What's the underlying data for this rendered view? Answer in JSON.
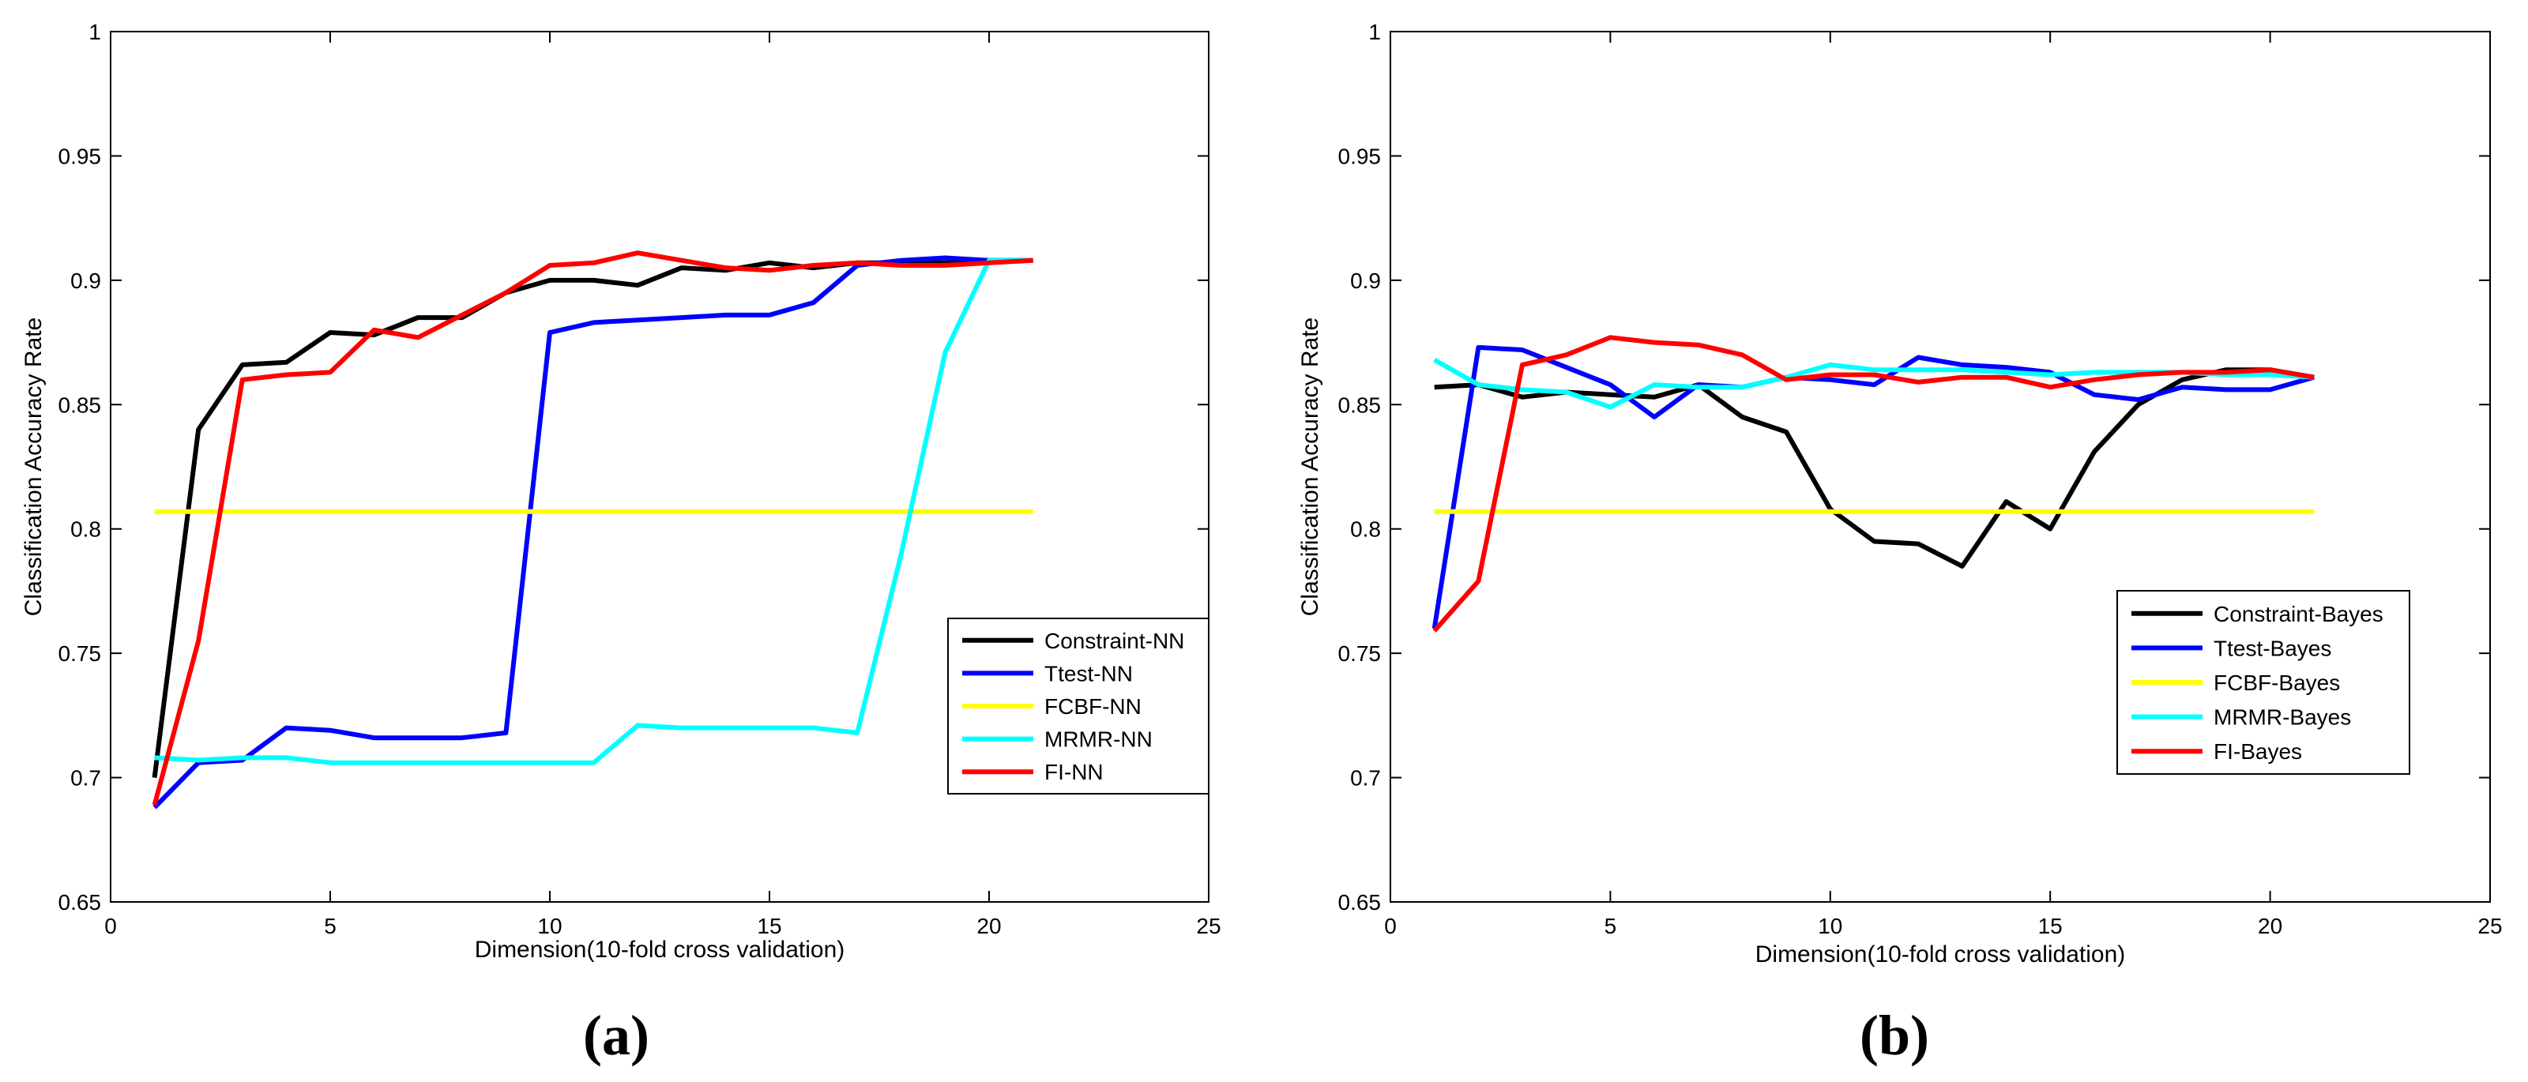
{
  "chart_data": [
    {
      "type": "line",
      "panel_label": "(a)",
      "xlabel": "Dimension(10-fold cross validation)",
      "ylabel": "Classification Accuracy Rate",
      "xlim": [
        0,
        25
      ],
      "ylim": [
        0.65,
        1
      ],
      "xticks": [
        "0",
        "5",
        "10",
        "15",
        "20",
        "25"
      ],
      "yticks": [
        "0.65",
        "0.7",
        "0.75",
        "0.8",
        "0.85",
        "0.9",
        "0.95",
        "1"
      ],
      "legend_position": "bottom-right",
      "x": [
        1,
        2,
        3,
        4,
        5,
        6,
        7,
        8,
        9,
        10,
        11,
        12,
        13,
        14,
        15,
        16,
        17,
        18,
        19,
        20,
        21
      ],
      "series": [
        {
          "name": "Constraint-NN",
          "color": "#000000",
          "values": [
            0.7,
            0.84,
            0.866,
            0.867,
            0.879,
            0.878,
            0.885,
            0.885,
            0.895,
            0.9,
            0.9,
            0.898,
            0.905,
            0.904,
            0.907,
            0.905,
            0.907,
            0.907,
            0.907,
            0.908,
            0.908
          ]
        },
        {
          "name": "Ttest-NN",
          "color": "#0000ff",
          "values": [
            0.688,
            0.706,
            0.707,
            0.72,
            0.719,
            0.716,
            0.716,
            0.716,
            0.718,
            0.879,
            0.883,
            0.884,
            0.885,
            0.886,
            0.886,
            0.891,
            0.906,
            0.908,
            0.909,
            0.908,
            0.908
          ]
        },
        {
          "name": "FCBF-NN",
          "color": "#ffff00",
          "values": [
            0.807,
            0.807,
            0.807,
            0.807,
            0.807,
            0.807,
            0.807,
            0.807,
            0.807,
            0.807,
            0.807,
            0.807,
            0.807,
            0.807,
            0.807,
            0.807,
            0.807,
            0.807,
            0.807,
            0.807,
            0.807
          ]
        },
        {
          "name": "MRMR-NN",
          "color": "#00ffff",
          "values": [
            0.708,
            0.707,
            0.708,
            0.708,
            0.706,
            0.706,
            0.706,
            0.706,
            0.706,
            0.706,
            0.706,
            0.721,
            0.72,
            0.72,
            0.72,
            0.72,
            0.718,
            0.79,
            0.871,
            0.908,
            0.908
          ]
        },
        {
          "name": "FI-NN",
          "color": "#ff0000",
          "values": [
            0.689,
            0.755,
            0.86,
            0.862,
            0.863,
            0.88,
            0.877,
            0.886,
            0.895,
            0.906,
            0.907,
            0.911,
            0.908,
            0.905,
            0.904,
            0.906,
            0.907,
            0.906,
            0.906,
            0.907,
            0.908
          ]
        }
      ]
    },
    {
      "type": "line",
      "panel_label": "(b)",
      "xlabel": "Dimension(10-fold cross validation)",
      "ylabel": "Classification Accuracy Rate",
      "xlim": [
        0,
        25
      ],
      "ylim": [
        0.65,
        1
      ],
      "xticks": [
        "0",
        "5",
        "10",
        "15",
        "20",
        "25"
      ],
      "yticks": [
        "0.65",
        "0.7",
        "0.75",
        "0.8",
        "0.85",
        "0.9",
        "0.95",
        "1"
      ],
      "legend_position": "bottom-right",
      "x": [
        1,
        2,
        3,
        4,
        5,
        6,
        7,
        8,
        9,
        10,
        11,
        12,
        13,
        14,
        15,
        16,
        17,
        18,
        19,
        20,
        21
      ],
      "series": [
        {
          "name": "Constraint-Bayes",
          "color": "#000000",
          "values": [
            0.857,
            0.858,
            0.853,
            0.855,
            0.854,
            0.853,
            0.858,
            0.845,
            0.839,
            0.808,
            0.795,
            0.794,
            0.785,
            0.811,
            0.8,
            0.831,
            0.85,
            0.86,
            0.864,
            0.864,
            0.861
          ]
        },
        {
          "name": "Ttest-Bayes",
          "color": "#0000ff",
          "values": [
            0.76,
            0.873,
            0.872,
            0.865,
            0.858,
            0.845,
            0.858,
            0.857,
            0.861,
            0.86,
            0.858,
            0.869,
            0.866,
            0.865,
            0.863,
            0.854,
            0.852,
            0.857,
            0.856,
            0.856,
            0.861
          ]
        },
        {
          "name": "FCBF-Bayes",
          "color": "#ffff00",
          "values": [
            0.807,
            0.807,
            0.807,
            0.807,
            0.807,
            0.807,
            0.807,
            0.807,
            0.807,
            0.807,
            0.807,
            0.807,
            0.807,
            0.807,
            0.807,
            0.807,
            0.807,
            0.807,
            0.807,
            0.807,
            0.807
          ]
        },
        {
          "name": "MRMR-Bayes",
          "color": "#00ffff",
          "values": [
            0.868,
            0.858,
            0.856,
            0.855,
            0.849,
            0.858,
            0.857,
            0.857,
            0.861,
            0.866,
            0.864,
            0.864,
            0.864,
            0.863,
            0.862,
            0.863,
            0.863,
            0.863,
            0.862,
            0.862,
            0.861
          ]
        },
        {
          "name": "FI-Bayes",
          "color": "#ff0000",
          "values": [
            0.759,
            0.779,
            0.866,
            0.87,
            0.877,
            0.875,
            0.874,
            0.87,
            0.86,
            0.862,
            0.862,
            0.859,
            0.861,
            0.861,
            0.857,
            0.86,
            0.862,
            0.863,
            0.863,
            0.864,
            0.861
          ]
        }
      ]
    }
  ]
}
